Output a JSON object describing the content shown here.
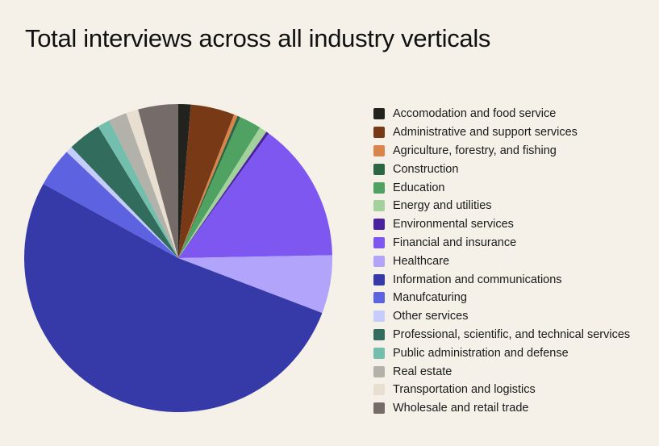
{
  "chart_data": {
    "type": "pie",
    "title": "Total interviews across all industry verticals",
    "unit": "percent (estimated)",
    "legend_position": "right",
    "slices": [
      {
        "label": "Accomodation and food service",
        "value": 1.3,
        "color": "#22221f"
      },
      {
        "label": "Administrative and support services",
        "value": 4.6,
        "color": "#773916"
      },
      {
        "label": "Agriculture, forestry, and fishing",
        "value": 0.4,
        "color": "#d9844a"
      },
      {
        "label": "Construction",
        "value": 0.3,
        "color": "#2d6642"
      },
      {
        "label": "Education",
        "value": 2.3,
        "color": "#50a262"
      },
      {
        "label": "Energy and utilities",
        "value": 0.8,
        "color": "#a3d19c"
      },
      {
        "label": "Environmental services",
        "value": 0.3,
        "color": "#4a22a0"
      },
      {
        "label": "Financial and insurance",
        "value": 14.7,
        "color": "#7d57f0"
      },
      {
        "label": "Healthcare",
        "value": 6.1,
        "color": "#b3a4fb"
      },
      {
        "label": "Information and communications",
        "value": 52.2,
        "color": "#353aa8"
      },
      {
        "label": "Manufcaturing",
        "value": 4.1,
        "color": "#5c62e0"
      },
      {
        "label": "Other services",
        "value": 0.7,
        "color": "#c5cdff"
      },
      {
        "label": "Professional, scientific, and technical services",
        "value": 3.5,
        "color": "#316c5d"
      },
      {
        "label": "Public administration and defense",
        "value": 1.3,
        "color": "#74bead"
      },
      {
        "label": "Real estate",
        "value": 1.9,
        "color": "#b3b2aa"
      },
      {
        "label": "Transportation and logistics",
        "value": 1.3,
        "color": "#e8dfd1"
      },
      {
        "label": "Wholesale and retail trade",
        "value": 4.2,
        "color": "#756b69"
      }
    ]
  }
}
